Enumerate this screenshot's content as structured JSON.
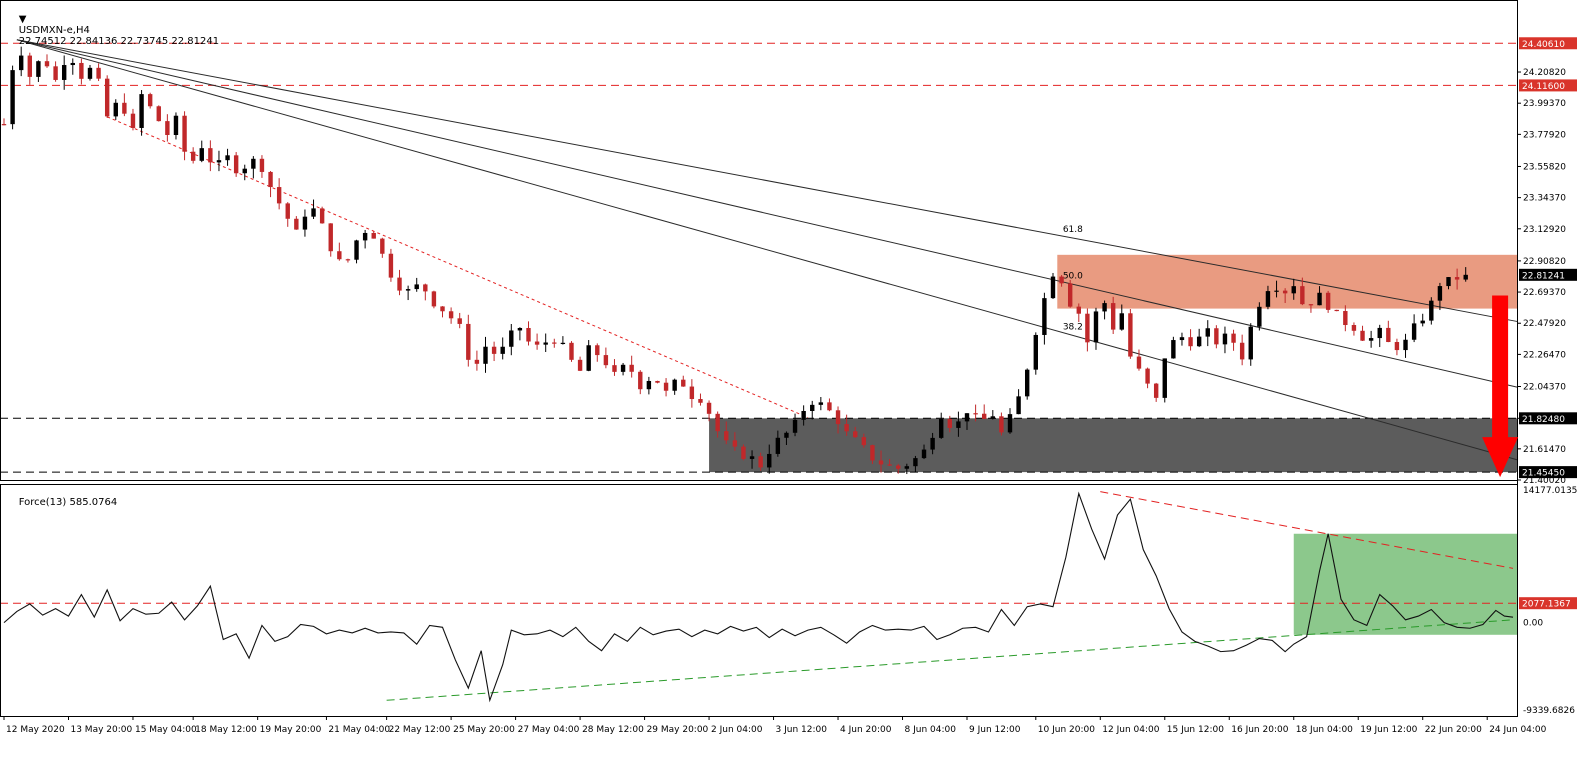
{
  "header": {
    "symbol": "USDMXN-e,H4",
    "ohlc": "22.74512 22.84136 22.73745 22.81241",
    "indicator": "Force(13) 585.0764"
  },
  "colors": {
    "bull": "#000000",
    "bear": "#c0282a",
    "resistance_zone": "#e8967a",
    "support_zone": "#5c5c5c",
    "red_line": "#e32222",
    "green_line": "#2a9a2a",
    "force_zone": "#8cc88c",
    "arrow": "#ff0000"
  },
  "chart_data": [
    {
      "type": "candlestick",
      "panel": "price",
      "ylim": [
        21.4002,
        24.58
      ],
      "y_ticks": [
        24.2082,
        23.9937,
        23.7792,
        23.5582,
        23.3437,
        23.1292,
        22.9082,
        22.6937,
        22.4792,
        22.2647,
        22.0437,
        21.8248,
        21.6147,
        21.4002
      ],
      "y_tick_labels": [
        "24.20820",
        "23.99370",
        "23.77920",
        "23.55820",
        "23.34370",
        "23.12920",
        "22.90820",
        "22.69370",
        "22.47920",
        "22.26470",
        "22.04370",
        "21.82480",
        "21.61470",
        "21.40020"
      ],
      "price_labels": [
        {
          "label": "24.40610",
          "value": 24.4061,
          "color": "red"
        },
        {
          "label": "24.11600",
          "value": 24.116,
          "color": "red"
        },
        {
          "label": "22.81241",
          "value": 22.81241,
          "color": "black"
        },
        {
          "label": "21.82480",
          "value": 21.8248,
          "color": "black"
        },
        {
          "label": "21.45450",
          "value": 21.4545,
          "color": "black"
        }
      ],
      "horizontal_levels": [
        {
          "value": 24.4061,
          "style": "red-dashed"
        },
        {
          "value": 24.116,
          "style": "red-dashed"
        },
        {
          "value": 21.8248,
          "style": "black-dashed"
        },
        {
          "value": 21.4545,
          "style": "black-dashed"
        }
      ],
      "zones": [
        {
          "name": "resistance",
          "from_bar": 245,
          "to_bar": 351,
          "low": 22.58,
          "high": 22.95,
          "color": "#e8967a"
        },
        {
          "name": "support",
          "from_bar": 164,
          "to_bar": 351,
          "low": 21.4545,
          "high": 21.8248,
          "color": "#5c5c5c"
        }
      ],
      "fib_fan": {
        "origin": {
          "bar": 3,
          "value": 24.43
        },
        "lines": [
          {
            "label": "61.8",
            "through": {
              "bar": 300,
              "value": 22.78
            }
          },
          {
            "label": "50.0",
            "through": {
              "bar": 300,
              "value": 22.395
            }
          },
          {
            "label": "38.2",
            "through": {
              "bar": 300,
              "value": 21.97
            }
          }
        ]
      },
      "dotted_trend": {
        "from": {
          "bar": 24,
          "value": 23.9
        },
        "to": {
          "bar": 187,
          "value": 21.83
        }
      },
      "forecast_arrow": {
        "bar": 348,
        "from": 22.67,
        "to": 21.42
      },
      "x_ticks": [
        {
          "bar": 0,
          "label": "12 May 2020"
        },
        {
          "bar": 15,
          "label": "13 May 20:00"
        },
        {
          "bar": 30,
          "label": "15 May 04:00"
        },
        {
          "bar": 44,
          "label": "18 May 12:00"
        },
        {
          "bar": 59,
          "label": "19 May 20:00"
        },
        {
          "bar": 75,
          "label": "21 May 04:00"
        },
        {
          "bar": 89,
          "label": "22 May 12:00"
        },
        {
          "bar": 104,
          "label": "25 May 20:00"
        },
        {
          "bar": 119,
          "label": "27 May 04:00"
        },
        {
          "bar": 134,
          "label": "28 May 12:00"
        },
        {
          "bar": 149,
          "label": "29 May 20:00"
        },
        {
          "bar": 164,
          "label": "2 Jun 04:00"
        },
        {
          "bar": 179,
          "label": "3 Jun 12:00"
        },
        {
          "bar": 194,
          "label": "4 Jun 20:00"
        },
        {
          "bar": 209,
          "label": "8 Jun 04:00"
        },
        {
          "bar": 224,
          "label": "9 Jun 12:00"
        },
        {
          "bar": 240,
          "label": "10 Jun 20:00"
        },
        {
          "bar": 255,
          "label": "12 Jun 04:00"
        },
        {
          "bar": 270,
          "label": "15 Jun 12:00"
        },
        {
          "bar": 285,
          "label": "16 Jun 20:00"
        },
        {
          "bar": 300,
          "label": "18 Jun 04:00"
        },
        {
          "bar": 315,
          "label": "19 Jun 12:00"
        },
        {
          "bar": 330,
          "label": "22 Jun 20:00"
        },
        {
          "bar": 345,
          "label": "24 Jun 04:00"
        }
      ],
      "total_bars": 352,
      "waypoints": [
        [
          0,
          23.85
        ],
        [
          3,
          24.43
        ],
        [
          6,
          24.18
        ],
        [
          9,
          24.32
        ],
        [
          12,
          24.15
        ],
        [
          15,
          24.35
        ],
        [
          18,
          24.18
        ],
        [
          21,
          24.25
        ],
        [
          24,
          23.9
        ],
        [
          27,
          24.02
        ],
        [
          30,
          23.8
        ],
        [
          32,
          24.05
        ],
        [
          35,
          23.92
        ],
        [
          38,
          23.78
        ],
        [
          40,
          23.88
        ],
        [
          43,
          23.55
        ],
        [
          46,
          23.7
        ],
        [
          49,
          23.55
        ],
        [
          52,
          23.62
        ],
        [
          55,
          23.5
        ],
        [
          57,
          23.62
        ],
        [
          60,
          23.55
        ],
        [
          62,
          23.42
        ],
        [
          65,
          23.25
        ],
        [
          68,
          23.1
        ],
        [
          71,
          23.3
        ],
        [
          73,
          23.22
        ],
        [
          76,
          23.0
        ],
        [
          79,
          22.85
        ],
        [
          82,
          23.05
        ],
        [
          85,
          23.15
        ],
        [
          88,
          22.95
        ],
        [
          91,
          22.75
        ],
        [
          94,
          22.7
        ],
        [
          97,
          22.75
        ],
        [
          100,
          22.62
        ],
        [
          103,
          22.55
        ],
        [
          106,
          22.45
        ],
        [
          108,
          22.25
        ],
        [
          110,
          22.2
        ],
        [
          112,
          22.32
        ],
        [
          115,
          22.25
        ],
        [
          118,
          22.4
        ],
        [
          120,
          22.45
        ],
        [
          123,
          22.3
        ],
        [
          126,
          22.35
        ],
        [
          129,
          22.38
        ],
        [
          131,
          22.25
        ],
        [
          134,
          22.15
        ],
        [
          136,
          22.3
        ],
        [
          139,
          22.25
        ],
        [
          142,
          22.12
        ],
        [
          145,
          22.2
        ],
        [
          148,
          22.05
        ],
        [
          151,
          22.12
        ],
        [
          154,
          22.0
        ],
        [
          157,
          22.1
        ],
        [
          160,
          21.98
        ],
        [
          163,
          21.95
        ],
        [
          165,
          21.78
        ],
        [
          168,
          21.65
        ],
        [
          171,
          21.58
        ],
        [
          174,
          21.55
        ],
        [
          176,
          21.5
        ],
        [
          179,
          21.65
        ],
        [
          182,
          21.72
        ],
        [
          185,
          21.82
        ],
        [
          187,
          21.95
        ],
        [
          190,
          21.92
        ],
        [
          193,
          21.85
        ],
        [
          196,
          21.72
        ],
        [
          199,
          21.65
        ],
        [
          202,
          21.55
        ],
        [
          205,
          21.5
        ],
        [
          208,
          21.48
        ],
        [
          211,
          21.52
        ],
        [
          214,
          21.6
        ],
        [
          216,
          21.72
        ],
        [
          218,
          21.85
        ],
        [
          221,
          21.75
        ],
        [
          224,
          21.88
        ],
        [
          227,
          21.8
        ],
        [
          230,
          21.85
        ],
        [
          232,
          21.72
        ],
        [
          235,
          21.88
        ],
        [
          237,
          22.05
        ],
        [
          239,
          22.3
        ],
        [
          241,
          22.55
        ],
        [
          243,
          22.75
        ],
        [
          245,
          22.9
        ],
        [
          247,
          22.65
        ],
        [
          250,
          22.55
        ],
        [
          252,
          22.35
        ],
        [
          254,
          22.55
        ],
        [
          256,
          22.62
        ],
        [
          258,
          22.45
        ],
        [
          260,
          22.55
        ],
        [
          262,
          22.25
        ],
        [
          264,
          22.15
        ],
        [
          266,
          22.05
        ],
        [
          268,
          21.95
        ],
        [
          270,
          22.25
        ],
        [
          272,
          22.35
        ],
        [
          275,
          22.4
        ],
        [
          277,
          22.3
        ],
        [
          279,
          22.45
        ],
        [
          282,
          22.35
        ],
        [
          285,
          22.4
        ],
        [
          288,
          22.25
        ],
        [
          290,
          22.45
        ],
        [
          293,
          22.7
        ],
        [
          295,
          22.75
        ],
        [
          298,
          22.7
        ],
        [
          300,
          22.75
        ],
        [
          303,
          22.55
        ],
        [
          305,
          22.7
        ],
        [
          308,
          22.6
        ],
        [
          311,
          22.5
        ],
        [
          314,
          22.45
        ],
        [
          317,
          22.35
        ],
        [
          320,
          22.42
        ],
        [
          323,
          22.3
        ],
        [
          326,
          22.35
        ],
        [
          328,
          22.45
        ],
        [
          331,
          22.55
        ],
        [
          334,
          22.75
        ],
        [
          337,
          22.78
        ],
        [
          340,
          22.81241
        ]
      ]
    },
    {
      "type": "line",
      "panel": "force",
      "name": "Force(13)",
      "ylim": [
        -9339.6826,
        14177.0135
      ],
      "y_tick_labels": [
        {
          "label": "14177.0135",
          "value": 14177.0135
        },
        {
          "label": "2077.1367",
          "value": 2077.1367,
          "highlight": true
        },
        {
          "label": "0.00",
          "value": 0
        },
        {
          "label": "-9339.6826",
          "value": -9339.6826
        }
      ],
      "levels": [
        {
          "value": 2077.1367,
          "style": "red-dashed"
        }
      ],
      "zone": {
        "from_bar": 300,
        "to_bar": 351,
        "low": -1300,
        "high": 9500,
        "color": "#8cc88c"
      },
      "trend_lines": [
        {
          "style": "red-dashed",
          "from": {
            "bar": 255,
            "value": 14000
          },
          "to": {
            "bar": 351,
            "value": 5800
          }
        },
        {
          "style": "green-dashed",
          "from": {
            "bar": 89,
            "value": -8300
          },
          "to": {
            "bar": 351,
            "value": 300
          }
        }
      ],
      "points": [
        [
          0,
          0
        ],
        [
          3,
          1200
        ],
        [
          6,
          2000
        ],
        [
          9,
          800
        ],
        [
          12,
          1500
        ],
        [
          15,
          700
        ],
        [
          18,
          3000
        ],
        [
          21,
          600
        ],
        [
          24,
          3500
        ],
        [
          27,
          200
        ],
        [
          30,
          1500
        ],
        [
          33,
          900
        ],
        [
          36,
          1000
        ],
        [
          39,
          2200
        ],
        [
          42,
          300
        ],
        [
          45,
          1800
        ],
        [
          48,
          3900
        ],
        [
          51,
          -1800
        ],
        [
          54,
          -1200
        ],
        [
          57,
          -3800
        ],
        [
          60,
          -300
        ],
        [
          63,
          -2000
        ],
        [
          66,
          -1500
        ],
        [
          69,
          -200
        ],
        [
          72,
          -400
        ],
        [
          75,
          -1200
        ],
        [
          78,
          -800
        ],
        [
          81,
          -1100
        ],
        [
          84,
          -600
        ],
        [
          87,
          -1100
        ],
        [
          90,
          -1000
        ],
        [
          93,
          -1100
        ],
        [
          96,
          -2300
        ],
        [
          99,
          -300
        ],
        [
          102,
          -500
        ],
        [
          105,
          -4000
        ],
        [
          108,
          -7000
        ],
        [
          111,
          -3000
        ],
        [
          113,
          -8300
        ],
        [
          116,
          -4500
        ],
        [
          118,
          -800
        ],
        [
          121,
          -1300
        ],
        [
          124,
          -1200
        ],
        [
          127,
          -800
        ],
        [
          130,
          -1500
        ],
        [
          133,
          -500
        ],
        [
          136,
          -2000
        ],
        [
          139,
          -3000
        ],
        [
          142,
          -1200
        ],
        [
          145,
          -2000
        ],
        [
          148,
          -500
        ],
        [
          151,
          -1300
        ],
        [
          154,
          -900
        ],
        [
          157,
          -700
        ],
        [
          160,
          -1500
        ],
        [
          163,
          -800
        ],
        [
          166,
          -1200
        ],
        [
          169,
          -400
        ],
        [
          172,
          -900
        ],
        [
          175,
          -500
        ],
        [
          178,
          -1600
        ],
        [
          181,
          -700
        ],
        [
          184,
          -1400
        ],
        [
          187,
          -800
        ],
        [
          190,
          -500
        ],
        [
          193,
          -1300
        ],
        [
          196,
          -2200
        ],
        [
          199,
          -1000
        ],
        [
          202,
          -300
        ],
        [
          205,
          -800
        ],
        [
          208,
          -700
        ],
        [
          211,
          -800
        ],
        [
          214,
          -400
        ],
        [
          217,
          -1800
        ],
        [
          220,
          -1300
        ],
        [
          223,
          -600
        ],
        [
          226,
          -500
        ],
        [
          229,
          -1000
        ],
        [
          232,
          1400
        ],
        [
          235,
          -300
        ],
        [
          238,
          1700
        ],
        [
          241,
          2000
        ],
        [
          244,
          1700
        ],
        [
          247,
          7000
        ],
        [
          250,
          13800
        ],
        [
          253,
          10000
        ],
        [
          256,
          6800
        ],
        [
          259,
          11500
        ],
        [
          262,
          13200
        ],
        [
          265,
          7800
        ],
        [
          268,
          5000
        ],
        [
          271,
          1500
        ],
        [
          274,
          -1000
        ],
        [
          277,
          -2000
        ],
        [
          280,
          -2500
        ],
        [
          283,
          -3100
        ],
        [
          286,
          -3000
        ],
        [
          289,
          -2400
        ],
        [
          292,
          -1700
        ],
        [
          295,
          -1900
        ],
        [
          298,
          -3100
        ],
        [
          300,
          -2300
        ],
        [
          303,
          -1500
        ],
        [
          306,
          5500
        ],
        [
          308,
          9500
        ],
        [
          311,
          2500
        ],
        [
          314,
          300
        ],
        [
          317,
          -300
        ],
        [
          320,
          3000
        ],
        [
          323,
          1800
        ],
        [
          326,
          300
        ],
        [
          329,
          700
        ],
        [
          332,
          1400
        ],
        [
          335,
          0
        ],
        [
          338,
          -500
        ],
        [
          341,
          -600
        ],
        [
          344,
          -200
        ],
        [
          347,
          1300
        ],
        [
          349,
          700
        ],
        [
          351,
          585
        ]
      ]
    }
  ]
}
